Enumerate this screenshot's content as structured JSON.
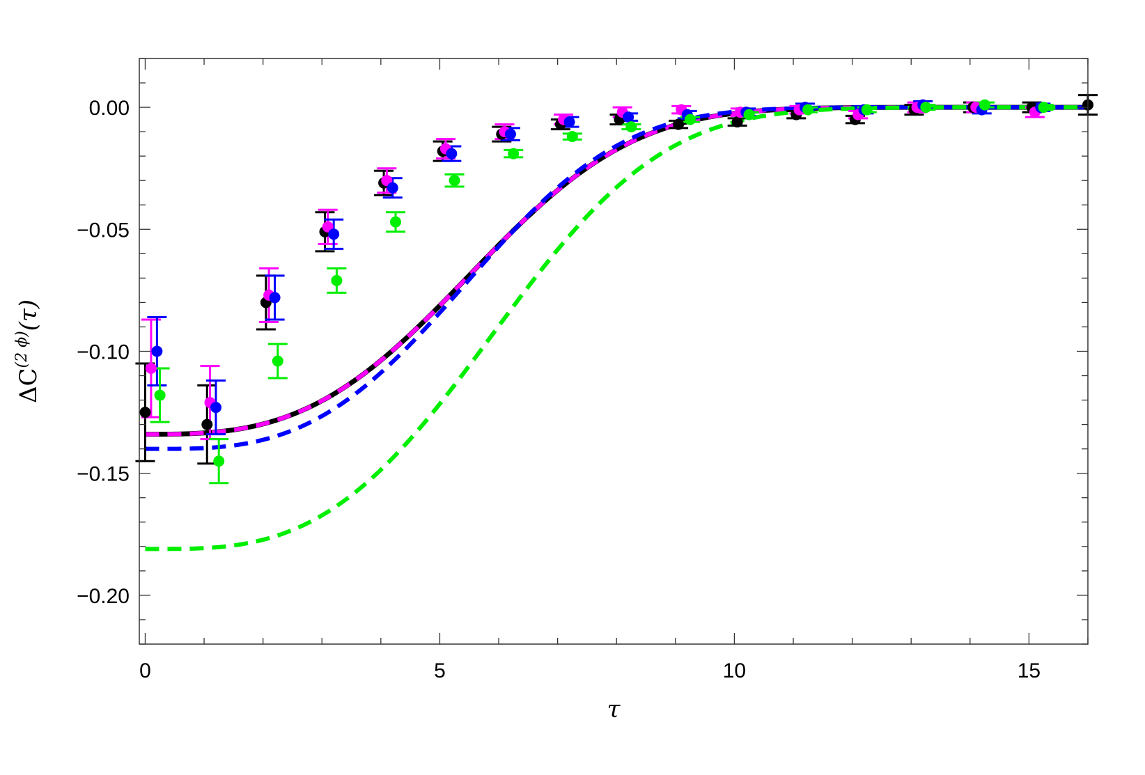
{
  "chart_data": {
    "type": "scatter",
    "xlabel": "τ",
    "ylabel": {
      "prefix": "ΔC",
      "superscript": "(2 ϕ)",
      "suffix": "(τ)"
    },
    "xlim": [
      -0.1,
      16.0
    ],
    "ylim": [
      -0.22,
      0.02
    ],
    "x_ticks": [
      0,
      5,
      10,
      15
    ],
    "x_tick_labels": [
      "0",
      "5",
      "10",
      "15"
    ],
    "y_ticks": [
      0.0,
      -0.05,
      -0.1,
      -0.15,
      -0.2
    ],
    "y_tick_labels": [
      "0.00",
      "−0.05",
      "−0.10",
      "−0.15",
      "−0.20"
    ],
    "grid": false,
    "series": [
      {
        "color": "#000000",
        "points": [
          {
            "x": 0.0,
            "y": -0.125,
            "err": 0.02
          },
          {
            "x": 1.05,
            "y": -0.13,
            "err": 0.016
          },
          {
            "x": 2.05,
            "y": -0.08,
            "err": 0.011
          },
          {
            "x": 3.05,
            "y": -0.051,
            "err": 0.008
          },
          {
            "x": 4.05,
            "y": -0.031,
            "err": 0.005
          },
          {
            "x": 5.05,
            "y": -0.018,
            "err": 0.004
          },
          {
            "x": 6.05,
            "y": -0.011,
            "err": 0.003
          },
          {
            "x": 7.05,
            "y": -0.007,
            "err": 0.002
          },
          {
            "x": 8.05,
            "y": -0.005,
            "err": 0.002
          },
          {
            "x": 9.05,
            "y": -0.007,
            "err": 0.0015
          },
          {
            "x": 10.05,
            "y": -0.006,
            "err": 0.0015
          },
          {
            "x": 11.05,
            "y": -0.003,
            "err": 0.0015
          },
          {
            "x": 12.05,
            "y": -0.005,
            "err": 0.0015
          },
          {
            "x": 13.05,
            "y": -0.001,
            "err": 0.002
          },
          {
            "x": 14.05,
            "y": 0.0,
            "err": 0.002
          },
          {
            "x": 15.05,
            "y": 0.0,
            "err": 0.002
          },
          {
            "x": 16.0,
            "y": 0.001,
            "err": 0.004
          }
        ],
        "fit": {
          "A": -0.134,
          "t0": 0.0,
          "B": 0.004,
          "style": "solid"
        }
      },
      {
        "color": "#ff00ff",
        "points": [
          {
            "x": 0.1,
            "y": -0.107,
            "err": 0.02
          },
          {
            "x": 1.1,
            "y": -0.121,
            "err": 0.015
          },
          {
            "x": 2.1,
            "y": -0.077,
            "err": 0.011
          },
          {
            "x": 3.1,
            "y": -0.049,
            "err": 0.007
          },
          {
            "x": 4.1,
            "y": -0.03,
            "err": 0.005
          },
          {
            "x": 5.1,
            "y": -0.017,
            "err": 0.004
          },
          {
            "x": 6.1,
            "y": -0.01,
            "err": 0.003
          },
          {
            "x": 7.1,
            "y": -0.005,
            "err": 0.002
          },
          {
            "x": 8.1,
            "y": -0.002,
            "err": 0.002
          },
          {
            "x": 9.1,
            "y": -0.001,
            "err": 0.0015
          },
          {
            "x": 10.1,
            "y": -0.002,
            "err": 0.0015
          },
          {
            "x": 11.1,
            "y": -0.001,
            "err": 0.0015
          },
          {
            "x": 12.1,
            "y": -0.003,
            "err": 0.0015
          },
          {
            "x": 13.1,
            "y": 0.0,
            "err": 0.002
          },
          {
            "x": 14.1,
            "y": 0.0,
            "err": 0.002
          },
          {
            "x": 15.1,
            "y": -0.002,
            "err": 0.002
          }
        ],
        "fit": {
          "A": -0.134,
          "t0": 0.0,
          "B": 0.004,
          "style": "dashed"
        }
      },
      {
        "color": "#0000ff",
        "points": [
          {
            "x": 0.2,
            "y": -0.1,
            "err": 0.014
          },
          {
            "x": 1.2,
            "y": -0.123,
            "err": 0.011
          },
          {
            "x": 2.2,
            "y": -0.078,
            "err": 0.009
          },
          {
            "x": 3.2,
            "y": -0.052,
            "err": 0.006
          },
          {
            "x": 4.2,
            "y": -0.033,
            "err": 0.004
          },
          {
            "x": 5.2,
            "y": -0.019,
            "err": 0.003
          },
          {
            "x": 6.2,
            "y": -0.011,
            "err": 0.0025
          },
          {
            "x": 7.2,
            "y": -0.006,
            "err": 0.002
          },
          {
            "x": 8.2,
            "y": -0.004,
            "err": 0.0015
          },
          {
            "x": 9.2,
            "y": -0.003,
            "err": 0.0015
          },
          {
            "x": 10.2,
            "y": -0.002,
            "err": 0.0015
          },
          {
            "x": 11.2,
            "y": 0.0,
            "err": 0.0015
          },
          {
            "x": 12.2,
            "y": -0.001,
            "err": 0.0015
          },
          {
            "x": 13.2,
            "y": 0.001,
            "err": 0.0015
          },
          {
            "x": 14.2,
            "y": -0.001,
            "err": 0.0015
          },
          {
            "x": 15.2,
            "y": 0.0,
            "err": 0.0015
          }
        ],
        "fit": {
          "A": -0.14,
          "t0": 0.2,
          "B": 0.0046,
          "style": "dashed"
        }
      },
      {
        "color": "#00ee00",
        "points": [
          {
            "x": 0.25,
            "y": -0.118,
            "err": 0.011
          },
          {
            "x": 1.25,
            "y": -0.145,
            "err": 0.009
          },
          {
            "x": 2.25,
            "y": -0.104,
            "err": 0.007
          },
          {
            "x": 3.25,
            "y": -0.071,
            "err": 0.005
          },
          {
            "x": 4.25,
            "y": -0.047,
            "err": 0.004
          },
          {
            "x": 5.25,
            "y": -0.03,
            "err": 0.0025
          },
          {
            "x": 6.25,
            "y": -0.019,
            "err": 0.0015
          },
          {
            "x": 7.25,
            "y": -0.012,
            "err": 0.0012
          },
          {
            "x": 8.25,
            "y": -0.008,
            "err": 0.001
          },
          {
            "x": 9.25,
            "y": -0.005,
            "err": 0.001
          },
          {
            "x": 10.25,
            "y": -0.003,
            "err": 0.001
          },
          {
            "x": 11.25,
            "y": -0.001,
            "err": 0.001
          },
          {
            "x": 12.25,
            "y": -0.001,
            "err": 0.001
          },
          {
            "x": 13.25,
            "y": 0.0,
            "err": 0.001
          },
          {
            "x": 14.25,
            "y": 0.001,
            "err": 0.001
          },
          {
            "x": 15.25,
            "y": 0.0,
            "err": 0.001
          }
        ],
        "fit": {
          "A": -0.181,
          "t0": 0.2,
          "B": 0.0036,
          "style": "dashed"
        }
      }
    ]
  }
}
